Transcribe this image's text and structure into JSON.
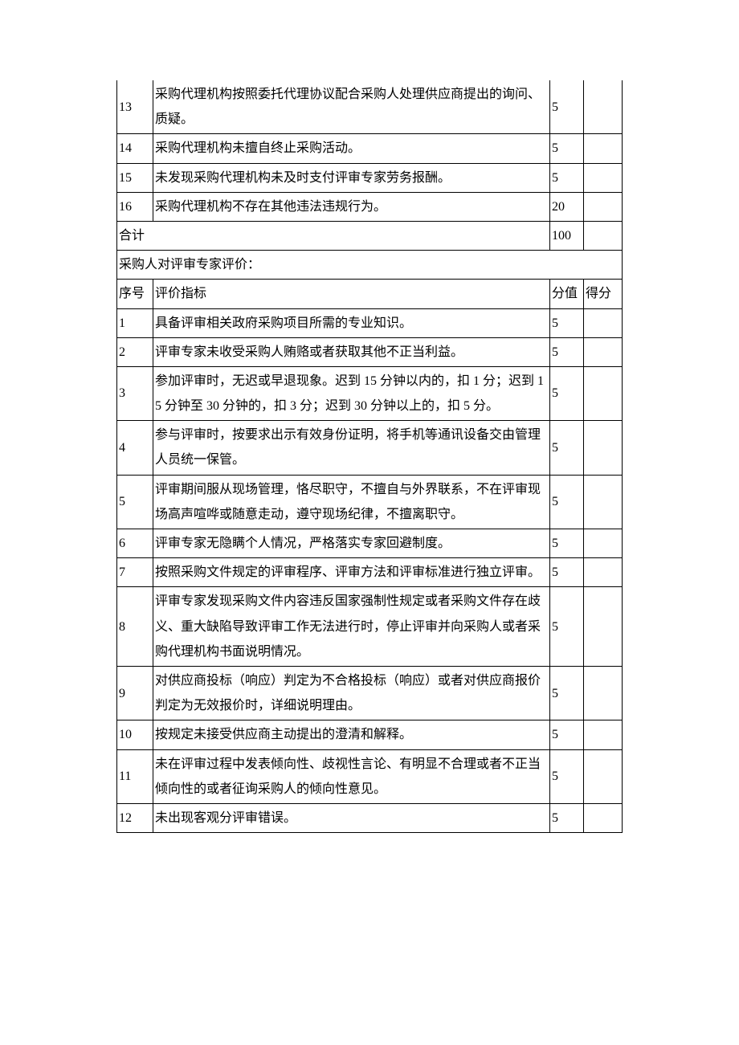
{
  "table1": {
    "rows": [
      {
        "num": "13",
        "desc": "采购代理机构按照委托代理协议配合采购人处理供应商提出的询问、质疑。",
        "score": "5",
        "result": ""
      },
      {
        "num": "14",
        "desc": "采购代理机构未擅自终止采购活动。",
        "score": "5",
        "result": ""
      },
      {
        "num": "15",
        "desc": "未发现采购代理机构未及时支付评审专家劳务报酬。",
        "score": "5",
        "result": ""
      },
      {
        "num": "16",
        "desc": "采购代理机构不存在其他违法违规行为。",
        "score": "20",
        "result": ""
      }
    ],
    "total_label": "合计",
    "total_score": "100",
    "total_result": ""
  },
  "section2": {
    "title": "采购人对评审专家评价：",
    "headers": {
      "num": "序号",
      "desc": "评价指标",
      "score": "分值",
      "result": "得分"
    },
    "rows": [
      {
        "num": "1",
        "desc": "具备评审相关政府采购项目所需的专业知识。",
        "score": "5",
        "result": ""
      },
      {
        "num": "2",
        "desc": "评审专家未收受采购人贿赂或者获取其他不正当利益。",
        "score": "5",
        "result": ""
      },
      {
        "num": "3",
        "desc": "参加评审时，无迟或早退现象。迟到 15 分钟以内的，扣 1 分；迟到 15 分钟至 30 分钟的，扣 3 分；迟到 30 分钟以上的，扣 5 分。",
        "score": "5",
        "result": ""
      },
      {
        "num": "4",
        "desc": "参与评审时，按要求出示有效身份证明，将手机等通讯设备交由管理人员统一保管。",
        "score": "5",
        "result": ""
      },
      {
        "num": "5",
        "desc": "评审期间服从现场管理，恪尽职守，不擅自与外界联系，不在评审现场高声喧哗或随意走动，遵守现场纪律，不擅离职守。",
        "score": "5",
        "result": ""
      },
      {
        "num": "6",
        "desc": "评审专家无隐瞒个人情况，严格落实专家回避制度。",
        "score": "5",
        "result": ""
      },
      {
        "num": "7",
        "desc": "按照采购文件规定的评审程序、评审方法和评审标准进行独立评审。",
        "score": "5",
        "result": ""
      },
      {
        "num": "8",
        "desc": "评审专家发现采购文件内容违反国家强制性规定或者采购文件存在歧义、重大缺陷导致评审工作无法进行时，停止评审并向采购人或者采购代理机构书面说明情况。",
        "score": "5",
        "result": ""
      },
      {
        "num": "9",
        "desc": "对供应商投标（响应）判定为不合格投标（响应）或者对供应商报价判定为无效报价时，详细说明理由。",
        "score": "5",
        "result": ""
      },
      {
        "num": "10",
        "desc": "按规定未接受供应商主动提出的澄清和解释。",
        "score": "5",
        "result": ""
      },
      {
        "num": "11",
        "desc": "未在评审过程中发表倾向性、歧视性言论、有明显不合理或者不正当倾向性的或者征询采购人的倾向性意见。",
        "score": "5",
        "result": ""
      },
      {
        "num": "12",
        "desc": "未出现客观分评审错误。",
        "score": "5",
        "result": ""
      }
    ]
  }
}
